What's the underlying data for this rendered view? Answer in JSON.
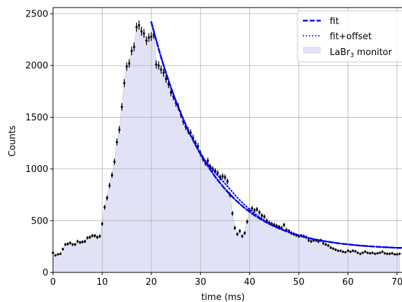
{
  "chart_data": {
    "type": "line",
    "xlabel": "time (ms)",
    "ylabel": "Counts",
    "xlim": [
      0,
      71
    ],
    "ylim": [
      0,
      2560
    ],
    "xticks": [
      0,
      10,
      20,
      30,
      40,
      50,
      60,
      70
    ],
    "yticks": [
      0,
      500,
      1000,
      1500,
      2000,
      2500
    ],
    "grid": true,
    "legend_position": "top-right",
    "colors": {
      "fit": "#0000ee",
      "fill": "#e2e2f7",
      "fill_edge": "#cdcdee",
      "points": "#000000",
      "grid": "#b0b0b0"
    },
    "legend": {
      "fit": "fit",
      "fit_offset": "fit+offset",
      "monitor_prefix": "LaBr",
      "monitor_sub": "3",
      "monitor_suffix": " monitor"
    },
    "series": [
      {
        "name": "LaBr3 monitor",
        "style": "points-with-errorbars-and-fill",
        "x": [
          0,
          0.5,
          1,
          1.5,
          2,
          2.5,
          3,
          3.5,
          4,
          4.5,
          5,
          5.5,
          6,
          6.5,
          7,
          7.5,
          8,
          8.5,
          9,
          9.5,
          10,
          10.5,
          11,
          11.5,
          12,
          12.5,
          13,
          13.5,
          14,
          14.5,
          15,
          15.5,
          16,
          16.5,
          17,
          17.5,
          18,
          18.5,
          19,
          19.5,
          20,
          20.5,
          21,
          21.5,
          22,
          22.5,
          23,
          23.5,
          24,
          24.5,
          25,
          25.5,
          26,
          26.5,
          27,
          27.5,
          28,
          28.5,
          29,
          29.5,
          30,
          30.5,
          31,
          31.5,
          32,
          32.5,
          33,
          33.5,
          34,
          34.5,
          35,
          35.5,
          36,
          36.5,
          37,
          37.5,
          38,
          38.5,
          39,
          39.5,
          40,
          40.5,
          41,
          41.5,
          42,
          42.5,
          43,
          43.5,
          44,
          44.5,
          45,
          45.5,
          46,
          46.5,
          47,
          47.5,
          48,
          48.5,
          49,
          49.5,
          50,
          50.5,
          51,
          51.5,
          52,
          52.5,
          53,
          53.5,
          54,
          54.5,
          55,
          55.5,
          56,
          56.5,
          57,
          57.5,
          58,
          58.5,
          59,
          59.5,
          60,
          60.5,
          61,
          61.5,
          62,
          62.5,
          63,
          63.5,
          64,
          64.5,
          65,
          65.5,
          66,
          66.5,
          67,
          67.5,
          68,
          68.5,
          69,
          69.5,
          70,
          70.5
        ],
        "y": [
          190,
          165,
          175,
          180,
          225,
          270,
          275,
          285,
          270,
          270,
          300,
          290,
          295,
          300,
          335,
          340,
          355,
          355,
          340,
          350,
          470,
          630,
          720,
          840,
          940,
          1070,
          1260,
          1380,
          1600,
          1830,
          1990,
          2020,
          2140,
          2180,
          2370,
          2390,
          2330,
          2310,
          2240,
          2270,
          2280,
          2300,
          2010,
          2000,
          1960,
          1930,
          1870,
          1820,
          1740,
          1700,
          1640,
          1600,
          1530,
          1460,
          1410,
          1370,
          1350,
          1300,
          1250,
          1220,
          1150,
          1100,
          1060,
          1080,
          1020,
          1000,
          980,
          960,
          920,
          930,
          920,
          880,
          750,
          570,
          430,
          370,
          400,
          350,
          380,
          490,
          600,
          620,
          600,
          610,
          580,
          550,
          540,
          500,
          480,
          470,
          460,
          450,
          440,
          430,
          460,
          410,
          400,
          380,
          370,
          360,
          350,
          355,
          350,
          340,
          310,
          300,
          310,
          310,
          300,
          310,
          280,
          270,
          260,
          240,
          230,
          220,
          210,
          210,
          200,
          195,
          210,
          200,
          210,
          205,
          190,
          180,
          190,
          200,
          190,
          185,
          190,
          180,
          185,
          190,
          200,
          185,
          180,
          180,
          185,
          175,
          175,
          180
        ]
      },
      {
        "name": "fit",
        "style": "dashed",
        "x": [
          20,
          21,
          22,
          23,
          24,
          25,
          26,
          27,
          28,
          29,
          30,
          31,
          32,
          33,
          34,
          35,
          36,
          37,
          38,
          39,
          40,
          41,
          42,
          43,
          44,
          45,
          46,
          47,
          48,
          49,
          50,
          51,
          52,
          53,
          54,
          55,
          56,
          57,
          58,
          59,
          60,
          61,
          62,
          63,
          64,
          65,
          66,
          67,
          68,
          69,
          70,
          71
        ],
        "y": [
          2420,
          2242,
          2078,
          1926,
          1786,
          1656,
          1536,
          1426,
          1324,
          1231,
          1144,
          1065,
          992,
          924,
          863,
          806,
          754,
          706,
          662,
          622,
          586,
          552,
          522,
          494,
          469,
          446,
          425,
          406,
          388,
          372,
          358,
          345,
          333,
          322,
          313,
          304,
          296,
          289,
          282,
          276,
          271,
          266,
          261,
          257,
          254,
          251,
          248,
          245,
          243,
          240,
          238,
          237
        ]
      },
      {
        "name": "fit+offset",
        "style": "dotted",
        "x": [
          20,
          21,
          22,
          23,
          24,
          25,
          26,
          27,
          28,
          29,
          30,
          31,
          32,
          33,
          34,
          35,
          36,
          37,
          38,
          39,
          40,
          41,
          42,
          43,
          44,
          45,
          46,
          47,
          48,
          49,
          50,
          51,
          52,
          53,
          54,
          55,
          56,
          57,
          58,
          59,
          60,
          61,
          62,
          63,
          64,
          65,
          66,
          67,
          68,
          69,
          70,
          71
        ],
        "y": [
          2420,
          2242,
          2078,
          1926,
          1786,
          1656,
          1536,
          1426,
          1324,
          1231,
          1150,
          1080,
          1020,
          965,
          912,
          860,
          805,
          750,
          698,
          652,
          608,
          570,
          535,
          504,
          476,
          451,
          428,
          408,
          390,
          374,
          359,
          346,
          334,
          323,
          313,
          304,
          296,
          289,
          282,
          276,
          271,
          266,
          261,
          257,
          254,
          251,
          248,
          245,
          243,
          240,
          238,
          237
        ]
      }
    ]
  }
}
